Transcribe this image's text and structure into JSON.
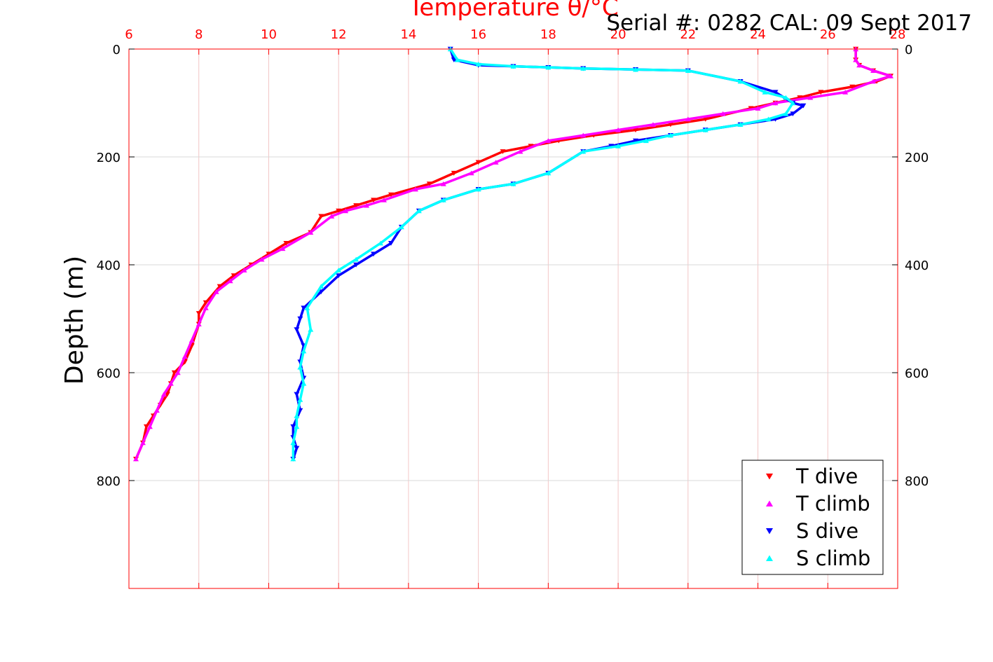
{
  "chart_data": {
    "type": "scatter",
    "title": "Temperature θ/°C",
    "annotation": "Serial #: 0282  CAL: 09 Sept 2017",
    "xlabel": "Temperature θ/°C",
    "ylabel": "Depth (m)",
    "xlim": [
      6,
      28
    ],
    "ylim": [
      0,
      1000
    ],
    "y_reversed": true,
    "x_axis_position": "top",
    "x_ticks": [
      "6",
      "8",
      "10",
      "12",
      "14",
      "16",
      "18",
      "20",
      "22",
      "24",
      "26",
      "28"
    ],
    "y_ticks": [
      "0",
      "200",
      "400",
      "600",
      "800"
    ],
    "grid": true,
    "legend_position": "bottom-right",
    "colors": {
      "axis": "#ff0000",
      "grid_x": "#f2c6c6",
      "grid_y": "#d8d8d8"
    },
    "series": [
      {
        "name": "T dive",
        "marker": "triangle-down",
        "color": "#ff0000",
        "x": [
          26.8,
          26.8,
          26.9,
          27.3,
          27.8,
          27.4,
          26.7,
          25.8,
          25.2,
          24.5,
          23.8,
          22.5,
          21.5,
          20.5,
          19.3,
          18.3,
          17.5,
          16.7,
          16.0,
          15.3,
          14.6,
          13.5,
          13.0,
          12.5,
          12.0,
          11.5,
          11.2,
          10.5,
          10.0,
          9.5,
          9.0,
          8.6,
          8.2,
          8.0,
          8.0,
          7.8,
          7.6,
          7.3,
          7.2,
          7.1,
          6.9,
          6.7,
          6.5,
          6.4,
          6.2
        ],
        "y": [
          0,
          20,
          30,
          40,
          50,
          60,
          70,
          80,
          90,
          100,
          110,
          130,
          140,
          150,
          160,
          170,
          180,
          190,
          210,
          230,
          250,
          270,
          280,
          290,
          300,
          310,
          340,
          360,
          380,
          400,
          420,
          440,
          470,
          490,
          510,
          550,
          580,
          600,
          620,
          640,
          660,
          680,
          700,
          730,
          760
        ]
      },
      {
        "name": "T climb",
        "marker": "triangle-up",
        "color": "#ff00ff",
        "x": [
          26.8,
          26.8,
          26.9,
          27.3,
          27.8,
          27.3,
          26.5,
          25.5,
          24.5,
          24.0,
          23.0,
          22.0,
          21.0,
          20.0,
          19.0,
          18.0,
          17.2,
          16.5,
          15.8,
          15.0,
          14.2,
          13.3,
          12.8,
          12.2,
          11.8,
          11.2,
          10.4,
          9.8,
          9.3,
          8.9,
          8.5,
          8.2,
          8.0,
          7.8,
          7.6,
          7.4,
          7.2,
          7.0,
          6.8,
          6.6,
          6.4,
          6.2
        ],
        "y": [
          0,
          20,
          30,
          40,
          50,
          60,
          80,
          90,
          100,
          110,
          120,
          130,
          140,
          150,
          160,
          170,
          190,
          210,
          230,
          250,
          260,
          280,
          290,
          300,
          310,
          340,
          370,
          390,
          410,
          430,
          450,
          480,
          510,
          540,
          570,
          600,
          620,
          640,
          670,
          700,
          730,
          760
        ]
      },
      {
        "name": "S dive",
        "marker": "triangle-down",
        "color": "#0000ff",
        "x": [
          15.2,
          15.3,
          16.0,
          17.0,
          18.0,
          19.0,
          20.5,
          22.0,
          23.5,
          24.5,
          25.0,
          25.3,
          25.0,
          24.5,
          23.5,
          22.5,
          21.5,
          20.5,
          19.8,
          19.0,
          18.0,
          17.0,
          16.0,
          15.0,
          14.3,
          13.8,
          13.5,
          13.0,
          12.5,
          12.0,
          11.5,
          11.0,
          10.9,
          10.8,
          11.0,
          10.9,
          11.0,
          10.8,
          10.9,
          10.7,
          10.7,
          10.8,
          10.7
        ],
        "y": [
          0,
          20,
          30,
          32,
          34,
          36,
          38,
          40,
          60,
          80,
          100,
          105,
          120,
          130,
          140,
          150,
          160,
          170,
          180,
          190,
          230,
          250,
          260,
          280,
          300,
          330,
          360,
          380,
          400,
          420,
          450,
          480,
          500,
          520,
          550,
          580,
          610,
          640,
          670,
          700,
          720,
          740,
          760
        ]
      },
      {
        "name": "S climb",
        "marker": "triangle-up",
        "color": "#00ffff",
        "x": [
          15.2,
          15.4,
          16.0,
          17.0,
          18.0,
          19.0,
          20.5,
          22.0,
          23.5,
          24.2,
          24.8,
          25.0,
          24.8,
          24.3,
          23.5,
          22.5,
          21.5,
          20.8,
          20.0,
          19.0,
          18.0,
          17.0,
          16.0,
          15.0,
          14.3,
          13.8,
          13.2,
          12.5,
          12.0,
          11.5,
          11.1,
          11.2,
          11.0,
          10.9,
          11.0,
          10.9,
          10.8,
          10.8,
          10.7,
          10.7
        ],
        "y": [
          0,
          20,
          28,
          32,
          34,
          36,
          38,
          40,
          60,
          80,
          90,
          100,
          120,
          130,
          140,
          150,
          160,
          170,
          180,
          190,
          230,
          250,
          260,
          280,
          300,
          330,
          360,
          390,
          410,
          440,
          480,
          520,
          560,
          590,
          620,
          650,
          680,
          700,
          730,
          760
        ]
      }
    ]
  }
}
